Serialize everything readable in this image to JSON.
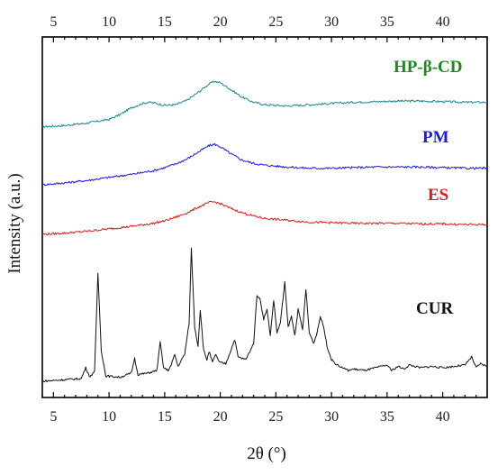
{
  "chart_data": {
    "type": "line",
    "title": "",
    "xlabel": "2θ (°)",
    "ylabel": "Intensity (a.u.)",
    "xlim": [
      4,
      44
    ],
    "x_ticks": [
      "5",
      "10",
      "15",
      "20",
      "25",
      "30",
      "35",
      "40"
    ],
    "x_tick_values": [
      5,
      10,
      15,
      20,
      25,
      30,
      35,
      40
    ],
    "y_ticks_shown": false,
    "grid": false,
    "stacked_offset": true,
    "series": [
      {
        "name": "HP-β-CD",
        "color": "#1a8a8a",
        "label_color": "#1a8a1a",
        "x": [
          4,
          6,
          8,
          10,
          11,
          12,
          13,
          13.5,
          14,
          15,
          16,
          17,
          18,
          19,
          19.5,
          20,
          21,
          22,
          23,
          24,
          26,
          28,
          30,
          32,
          34,
          36,
          38,
          40,
          42,
          44
        ],
        "y": [
          0.02,
          0.04,
          0.08,
          0.14,
          0.22,
          0.33,
          0.4,
          0.42,
          0.41,
          0.37,
          0.38,
          0.45,
          0.58,
          0.72,
          0.76,
          0.74,
          0.62,
          0.5,
          0.42,
          0.38,
          0.36,
          0.38,
          0.4,
          0.42,
          0.43,
          0.44,
          0.44,
          0.43,
          0.42,
          0.42
        ]
      },
      {
        "name": "PM",
        "color": "#1a1aee",
        "label_color": "#1a1aee",
        "x": [
          4,
          6,
          8,
          10,
          12,
          14,
          15,
          16,
          17,
          18,
          19,
          19.5,
          20,
          21,
          22,
          23,
          24,
          26,
          28,
          30,
          32,
          34,
          36,
          38,
          40,
          42,
          44
        ],
        "y": [
          0.0,
          0.03,
          0.07,
          0.12,
          0.17,
          0.23,
          0.28,
          0.34,
          0.42,
          0.53,
          0.64,
          0.66,
          0.62,
          0.5,
          0.4,
          0.35,
          0.32,
          0.29,
          0.27,
          0.27,
          0.28,
          0.29,
          0.29,
          0.29,
          0.28,
          0.27,
          0.27
        ]
      },
      {
        "name": "ES",
        "color": "#e01a1a",
        "label_color": "#e01a1a",
        "x": [
          4,
          6,
          8,
          10,
          12,
          14,
          15,
          16,
          17,
          18,
          19,
          19.5,
          20,
          21,
          22,
          23,
          24,
          26,
          28,
          30,
          32,
          34,
          36,
          38,
          40,
          42,
          44
        ],
        "y": [
          0.0,
          0.02,
          0.05,
          0.09,
          0.13,
          0.18,
          0.22,
          0.28,
          0.35,
          0.44,
          0.52,
          0.53,
          0.5,
          0.42,
          0.35,
          0.3,
          0.26,
          0.23,
          0.2,
          0.19,
          0.18,
          0.18,
          0.18,
          0.17,
          0.17,
          0.16,
          0.16
        ]
      },
      {
        "name": "CUR",
        "color": "#111111",
        "label_color": "#111111",
        "x": [
          4,
          7.5,
          7.9,
          8.3,
          8.7,
          9.0,
          9.3,
          9.7,
          11,
          12.0,
          12.3,
          12.6,
          13.5,
          14.3,
          14.6,
          14.9,
          15.3,
          15.6,
          15.9,
          16.2,
          16.8,
          17.2,
          17.4,
          17.7,
          18.0,
          18.2,
          18.5,
          18.8,
          19.0,
          19.3,
          19.6,
          19.9,
          20.5,
          21.0,
          21.3,
          21.6,
          22.3,
          23.0,
          23.3,
          23.6,
          23.9,
          24.2,
          24.5,
          24.8,
          25.1,
          25.4,
          25.8,
          26.1,
          26.4,
          26.7,
          27.0,
          27.4,
          27.7,
          28.0,
          28.4,
          28.7,
          29.0,
          29.3,
          29.6,
          30.0,
          30.5,
          31.0,
          31.5,
          32.0,
          33.0,
          34.0,
          35.0,
          35.4,
          36.0,
          36.5,
          37.0,
          38.0,
          39.0,
          40.0,
          41.0,
          42.0,
          42.6,
          43.0,
          43.4,
          44.0
        ],
        "y": [
          0.02,
          0.04,
          0.12,
          0.05,
          0.1,
          0.82,
          0.25,
          0.06,
          0.05,
          0.08,
          0.19,
          0.07,
          0.08,
          0.1,
          0.31,
          0.12,
          0.1,
          0.14,
          0.22,
          0.13,
          0.22,
          0.45,
          1.0,
          0.42,
          0.28,
          0.55,
          0.25,
          0.18,
          0.24,
          0.16,
          0.22,
          0.16,
          0.15,
          0.26,
          0.33,
          0.2,
          0.18,
          0.3,
          0.66,
          0.62,
          0.48,
          0.55,
          0.36,
          0.62,
          0.38,
          0.45,
          0.75,
          0.42,
          0.5,
          0.36,
          0.55,
          0.4,
          0.7,
          0.38,
          0.3,
          0.38,
          0.5,
          0.42,
          0.28,
          0.18,
          0.14,
          0.12,
          0.1,
          0.11,
          0.1,
          0.12,
          0.14,
          0.1,
          0.13,
          0.11,
          0.14,
          0.12,
          0.13,
          0.12,
          0.13,
          0.14,
          0.2,
          0.12,
          0.15,
          0.13
        ]
      }
    ]
  }
}
